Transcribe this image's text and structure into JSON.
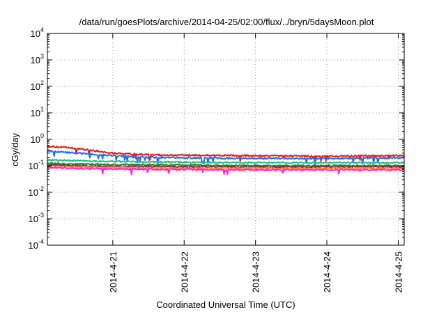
{
  "chart_data": {
    "type": "line",
    "title": "/data/run/goesPlots/archive/2014-04-25/02:00/flux/../bryn/5daysMoon.plot",
    "xlabel": "Coordinated Universal Time (UTC)",
    "ylabel": "cGy/day",
    "yscale": "log",
    "ylim": [
      0.0001,
      10000
    ],
    "y_ticks": [
      {
        "base": "10",
        "exp": "-4",
        "value": 0.0001
      },
      {
        "base": "10",
        "exp": "-3",
        "value": 0.001
      },
      {
        "base": "10",
        "exp": "-2",
        "value": 0.01
      },
      {
        "base": "10",
        "exp": "-1",
        "value": 0.1
      },
      {
        "base": "10",
        "exp": "0",
        "value": 1
      },
      {
        "base": "10",
        "exp": "1",
        "value": 10
      },
      {
        "base": "10",
        "exp": "2",
        "value": 100
      },
      {
        "base": "10",
        "exp": "3",
        "value": 1000
      },
      {
        "base": "10",
        "exp": "4",
        "value": 10000
      }
    ],
    "xlim": [
      "2014-04-20T02:00",
      "2014-04-25T02:00"
    ],
    "x_ticks": [
      "2014-4-21",
      "2014-4-22",
      "2014-4-23",
      "2014-4-24",
      "2014-4-25"
    ],
    "grid": true,
    "legend": "none",
    "series": [
      {
        "color": "#e8191c",
        "points": [
          [
            "2014-04-20T02:00",
            0.55
          ],
          [
            "2014-04-20T12:00",
            0.45
          ],
          [
            "2014-04-21T00:00",
            0.3
          ],
          [
            "2014-04-21T12:00",
            0.26
          ],
          [
            "2014-04-22T00:00",
            0.25
          ],
          [
            "2014-04-23T00:00",
            0.24
          ],
          [
            "2014-04-24T00:00",
            0.23
          ],
          [
            "2014-04-25T02:00",
            0.24
          ]
        ]
      },
      {
        "color": "#1f6ff0",
        "points": [
          [
            "2014-04-20T02:00",
            0.36
          ],
          [
            "2014-04-20T12:00",
            0.3
          ],
          [
            "2014-04-21T00:00",
            0.24
          ],
          [
            "2014-04-21T12:00",
            0.21
          ],
          [
            "2014-04-22T00:00",
            0.2
          ],
          [
            "2014-04-23T00:00",
            0.19
          ],
          [
            "2014-04-24T00:00",
            0.19
          ],
          [
            "2014-04-25T02:00",
            0.2
          ]
        ]
      },
      {
        "color": "#22c07a",
        "points": [
          [
            "2014-04-20T02:00",
            0.165
          ],
          [
            "2014-04-21T00:00",
            0.145
          ],
          [
            "2014-04-22T00:00",
            0.135
          ],
          [
            "2014-04-23T00:00",
            0.13
          ],
          [
            "2014-04-24T00:00",
            0.13
          ],
          [
            "2014-04-25T02:00",
            0.13
          ]
        ]
      },
      {
        "color": "#2f7a3a",
        "points": [
          [
            "2014-04-20T02:00",
            0.12
          ],
          [
            "2014-04-21T00:00",
            0.11
          ],
          [
            "2014-04-22T00:00",
            0.105
          ],
          [
            "2014-04-23T00:00",
            0.1
          ],
          [
            "2014-04-24T00:00",
            0.1
          ],
          [
            "2014-04-25T02:00",
            0.1
          ]
        ]
      },
      {
        "color": "#8a2a3a",
        "points": [
          [
            "2014-04-20T02:00",
            0.105
          ],
          [
            "2014-04-21T00:00",
            0.095
          ],
          [
            "2014-04-22T00:00",
            0.09
          ],
          [
            "2014-04-23T00:00",
            0.09
          ],
          [
            "2014-04-24T00:00",
            0.09
          ],
          [
            "2014-04-25T02:00",
            0.09
          ]
        ]
      },
      {
        "color": "#ff8a3a",
        "points": [
          [
            "2014-04-20T02:00",
            0.095
          ],
          [
            "2014-04-21T00:00",
            0.085
          ],
          [
            "2014-04-22T00:00",
            0.08
          ],
          [
            "2014-04-23T00:00",
            0.08
          ],
          [
            "2014-04-24T00:00",
            0.08
          ],
          [
            "2014-04-25T02:00",
            0.08
          ]
        ]
      },
      {
        "color": "#ff22dd",
        "points": [
          [
            "2014-04-20T02:00",
            0.085
          ],
          [
            "2014-04-21T00:00",
            0.075
          ],
          [
            "2014-04-22T00:00",
            0.072
          ],
          [
            "2014-04-23T00:00",
            0.07
          ],
          [
            "2014-04-24T00:00",
            0.07
          ],
          [
            "2014-04-25T02:00",
            0.07
          ]
        ]
      }
    ]
  }
}
